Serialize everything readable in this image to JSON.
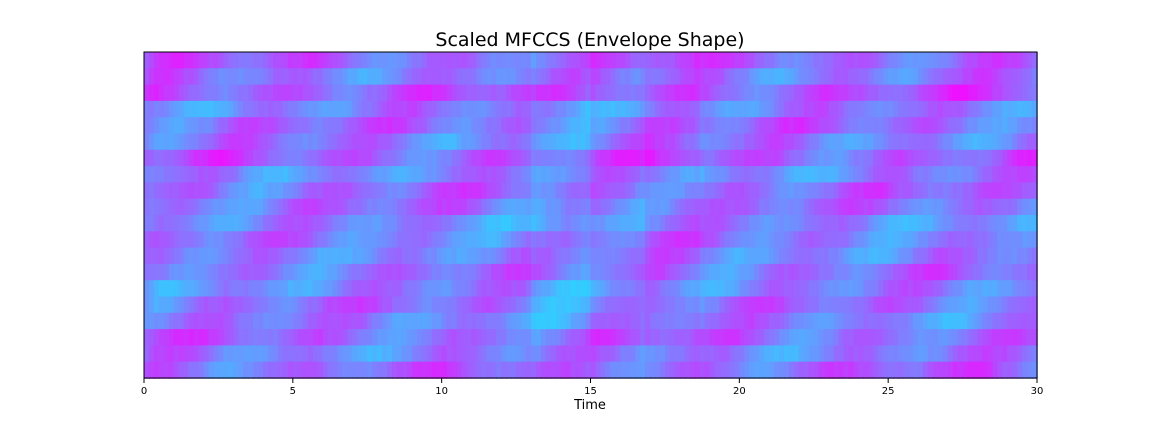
{
  "chart_data": {
    "type": "heatmap",
    "title": "Scaled MFCCS (Envelope Shape)",
    "xlabel": "Time",
    "ylabel": "",
    "xlim": [
      0,
      30
    ],
    "x_ticks": [
      0,
      5,
      10,
      15,
      20,
      25,
      30
    ],
    "n_coefficients": 20,
    "colormap": {
      "name": "cool",
      "low": "#00ffff",
      "high": "#ff00ff"
    },
    "grid": false,
    "legend": "none",
    "row_base_values": [
      0.62,
      0.55,
      0.67,
      0.5,
      0.58,
      0.52,
      0.64,
      0.49,
      0.57,
      0.54,
      0.46,
      0.53,
      0.51,
      0.56,
      0.48,
      0.55,
      0.5,
      0.59,
      0.52,
      0.6
    ]
  }
}
